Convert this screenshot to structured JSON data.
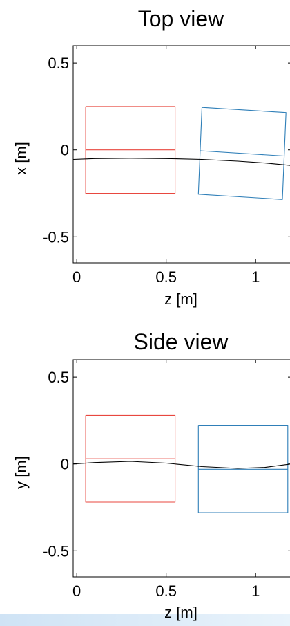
{
  "chart_data": [
    {
      "type": "line",
      "title": "Top view",
      "xlabel": "z [m]",
      "ylabel": "x [m]",
      "xlim": [
        -0.02,
        1.2
      ],
      "ylim": [
        -0.65,
        0.6
      ],
      "xticks": [
        {
          "value": 0,
          "label": "0"
        },
        {
          "value": 0.5,
          "label": "0.5"
        },
        {
          "value": 1,
          "label": "1"
        }
      ],
      "yticks": [
        {
          "value": 0.5,
          "label": "0.5"
        },
        {
          "value": 0,
          "label": "0"
        },
        {
          "value": -0.5,
          "label": "-0.5"
        }
      ],
      "grid": false,
      "series": [
        {
          "color": "#e8473f",
          "role": "rectangle",
          "points": [
            [
              0.05,
              0.25
            ],
            [
              0.55,
              0.25
            ],
            [
              0.55,
              -0.25
            ],
            [
              0.05,
              -0.25
            ],
            [
              0.05,
              0.25
            ]
          ]
        },
        {
          "color": "#e8473f",
          "role": "centerline",
          "points": [
            [
              0.05,
              0.0
            ],
            [
              0.55,
              0.0
            ]
          ]
        },
        {
          "color": "#2f7fb8",
          "role": "rectangle",
          "points": [
            [
              0.7,
              0.245
            ],
            [
              1.17,
              0.215
            ],
            [
              1.15,
              -0.285
            ],
            [
              0.68,
              -0.255
            ],
            [
              0.7,
              0.245
            ]
          ]
        },
        {
          "color": "#2f7fb8",
          "role": "centerline",
          "points": [
            [
              0.69,
              -0.005
            ],
            [
              1.16,
              -0.035
            ]
          ]
        },
        {
          "color": "#000000",
          "role": "path",
          "points": [
            [
              -0.02,
              -0.055
            ],
            [
              0.1,
              -0.05
            ],
            [
              0.3,
              -0.048
            ],
            [
              0.5,
              -0.05
            ],
            [
              0.7,
              -0.055
            ],
            [
              0.9,
              -0.065
            ],
            [
              1.05,
              -0.075
            ],
            [
              1.2,
              -0.09
            ]
          ]
        }
      ]
    },
    {
      "type": "line",
      "title": "Side view",
      "xlabel": "z [m]",
      "ylabel": "y [m]",
      "xlim": [
        -0.02,
        1.2
      ],
      "ylim": [
        -0.65,
        0.6
      ],
      "xticks": [
        {
          "value": 0,
          "label": "0"
        },
        {
          "value": 0.5,
          "label": "0.5"
        },
        {
          "value": 1,
          "label": "1"
        }
      ],
      "yticks": [
        {
          "value": 0.5,
          "label": "0.5"
        },
        {
          "value": 0,
          "label": "0"
        },
        {
          "value": -0.5,
          "label": "-0.5"
        }
      ],
      "grid": false,
      "series": [
        {
          "color": "#e8473f",
          "role": "rectangle",
          "points": [
            [
              0.05,
              0.28
            ],
            [
              0.55,
              0.28
            ],
            [
              0.55,
              -0.22
            ],
            [
              0.05,
              -0.22
            ],
            [
              0.05,
              0.28
            ]
          ]
        },
        {
          "color": "#e8473f",
          "role": "centerline",
          "points": [
            [
              0.05,
              0.03
            ],
            [
              0.55,
              0.03
            ]
          ]
        },
        {
          "color": "#2f7fb8",
          "role": "rectangle",
          "points": [
            [
              0.68,
              0.22
            ],
            [
              1.18,
              0.22
            ],
            [
              1.18,
              -0.28
            ],
            [
              0.68,
              -0.28
            ],
            [
              0.68,
              0.22
            ]
          ]
        },
        {
          "color": "#2f7fb8",
          "role": "centerline",
          "points": [
            [
              0.68,
              -0.03
            ],
            [
              1.18,
              -0.03
            ]
          ]
        },
        {
          "color": "#000000",
          "role": "path",
          "points": [
            [
              -0.02,
              0.0
            ],
            [
              0.1,
              0.008
            ],
            [
              0.3,
              0.015
            ],
            [
              0.5,
              0.005
            ],
            [
              0.7,
              -0.015
            ],
            [
              0.9,
              -0.025
            ],
            [
              1.05,
              -0.02
            ],
            [
              1.2,
              0.0
            ]
          ]
        }
      ]
    }
  ]
}
